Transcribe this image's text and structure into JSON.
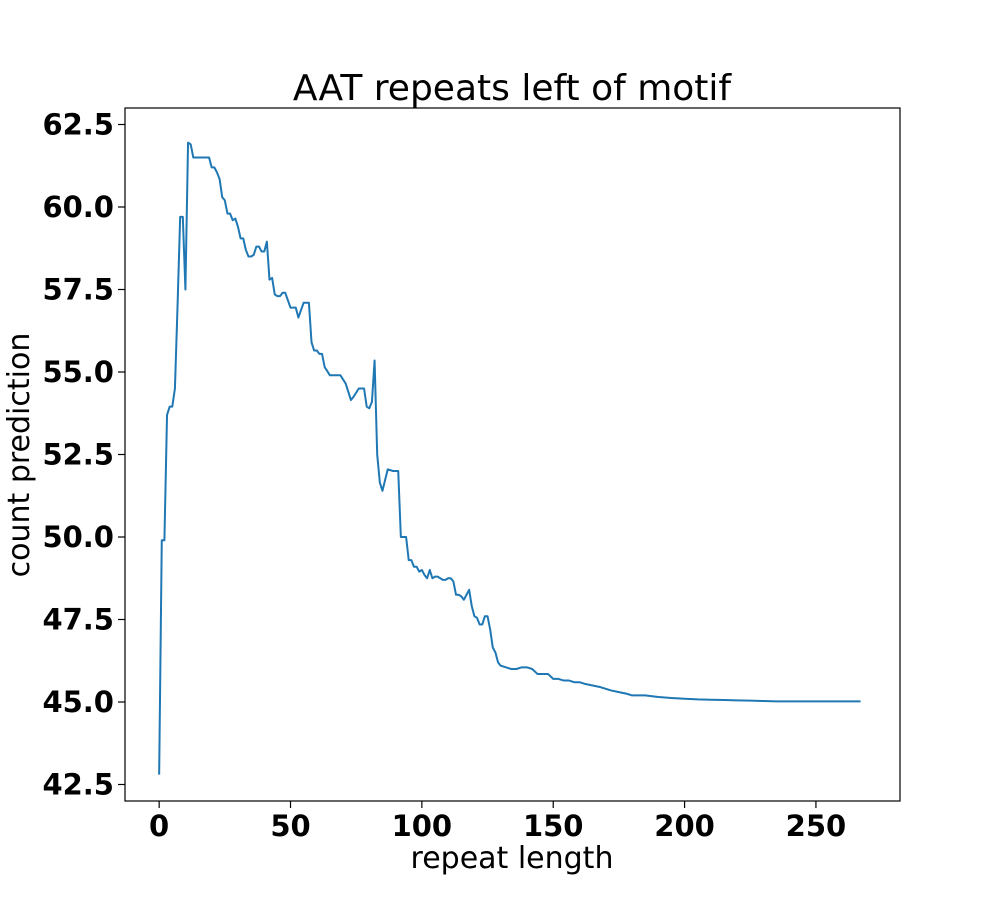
{
  "chart_data": {
    "type": "line",
    "title": "AAT repeats left of motif",
    "xlabel": "repeat length",
    "ylabel": "count prediction",
    "xlim": [
      -13,
      282
    ],
    "ylim": [
      42.0,
      63.0
    ],
    "xticks": [
      0,
      50,
      100,
      150,
      200,
      250
    ],
    "xtick_labels": [
      "0",
      "50",
      "100",
      "150",
      "200",
      "250"
    ],
    "yticks": [
      42.5,
      45.0,
      47.5,
      50.0,
      52.5,
      55.0,
      57.5,
      60.0,
      62.5
    ],
    "ytick_labels": [
      "42.5",
      "45.0",
      "47.5",
      "50.0",
      "52.5",
      "55.0",
      "57.5",
      "60.0",
      "62.5"
    ],
    "grid": false,
    "legend": "none",
    "color": "#1f77b4",
    "series": [
      {
        "x": [
          0,
          1,
          2,
          3,
          4,
          5,
          6,
          7,
          8,
          9,
          10,
          11,
          12,
          13,
          14,
          15,
          17,
          19,
          20,
          21,
          22,
          23,
          24,
          25,
          26,
          27,
          28,
          29,
          30,
          31,
          32,
          33,
          34,
          35,
          36,
          37,
          38,
          39,
          40,
          41,
          42,
          43,
          44,
          45,
          46,
          47,
          48,
          50,
          51,
          52,
          53,
          55,
          56,
          57,
          58,
          59,
          60,
          61,
          62,
          63,
          65,
          67,
          69,
          71,
          72,
          73,
          74,
          76,
          77,
          78,
          79,
          80,
          81,
          82,
          83,
          84,
          85,
          87,
          89,
          90,
          91,
          92,
          93,
          94,
          95,
          96,
          97,
          98,
          99,
          100,
          101,
          102,
          103,
          104,
          105,
          106,
          107,
          108,
          109,
          110,
          111,
          112,
          113,
          114,
          115,
          116,
          117,
          118,
          119,
          120,
          121,
          122,
          123,
          124,
          125,
          126,
          127,
          128,
          129,
          130,
          132,
          134,
          136,
          138,
          140,
          142,
          144,
          146,
          148,
          150,
          152,
          154,
          156,
          158,
          160,
          162,
          165,
          168,
          170,
          172,
          175,
          178,
          180,
          185,
          190,
          195,
          200,
          205,
          210,
          215,
          220,
          225,
          230,
          235,
          240,
          245,
          250,
          255,
          260,
          267
        ],
        "y": [
          42.8,
          49.9,
          49.9,
          53.7,
          53.95,
          53.95,
          54.5,
          57.0,
          59.7,
          59.7,
          57.5,
          61.95,
          61.9,
          61.5,
          61.5,
          61.5,
          61.5,
          61.5,
          61.2,
          61.2,
          61.05,
          60.85,
          60.3,
          60.2,
          59.8,
          59.8,
          59.6,
          59.65,
          59.4,
          59.05,
          59.05,
          58.7,
          58.5,
          58.5,
          58.55,
          58.8,
          58.8,
          58.65,
          58.65,
          58.95,
          57.8,
          57.85,
          57.35,
          57.3,
          57.3,
          57.4,
          57.4,
          56.95,
          56.95,
          56.95,
          56.65,
          57.1,
          57.1,
          57.1,
          55.9,
          55.65,
          55.65,
          55.55,
          55.55,
          55.15,
          54.9,
          54.9,
          54.9,
          54.65,
          54.4,
          54.15,
          54.25,
          54.5,
          54.5,
          54.5,
          53.95,
          53.9,
          54.1,
          55.35,
          52.5,
          51.65,
          51.4,
          52.05,
          52.0,
          52.0,
          52.0,
          50.0,
          50.0,
          50.0,
          49.3,
          49.3,
          49.1,
          49.1,
          48.95,
          49.0,
          48.85,
          48.75,
          49.0,
          48.75,
          48.8,
          48.8,
          48.75,
          48.7,
          48.7,
          48.75,
          48.75,
          48.65,
          48.25,
          48.25,
          48.2,
          48.1,
          48.25,
          48.4,
          47.9,
          47.6,
          47.55,
          47.35,
          47.35,
          47.6,
          47.6,
          47.2,
          46.65,
          46.5,
          46.2,
          46.1,
          46.05,
          46.0,
          46.0,
          46.05,
          46.05,
          46.0,
          45.85,
          45.85,
          45.85,
          45.7,
          45.7,
          45.65,
          45.65,
          45.6,
          45.6,
          45.55,
          45.5,
          45.45,
          45.4,
          45.35,
          45.3,
          45.25,
          45.2,
          45.2,
          45.15,
          45.12,
          45.1,
          45.08,
          45.07,
          45.06,
          45.05,
          45.04,
          45.03,
          45.02,
          45.02,
          45.02,
          45.02,
          45.02,
          45.02,
          45.02
        ]
      }
    ]
  }
}
